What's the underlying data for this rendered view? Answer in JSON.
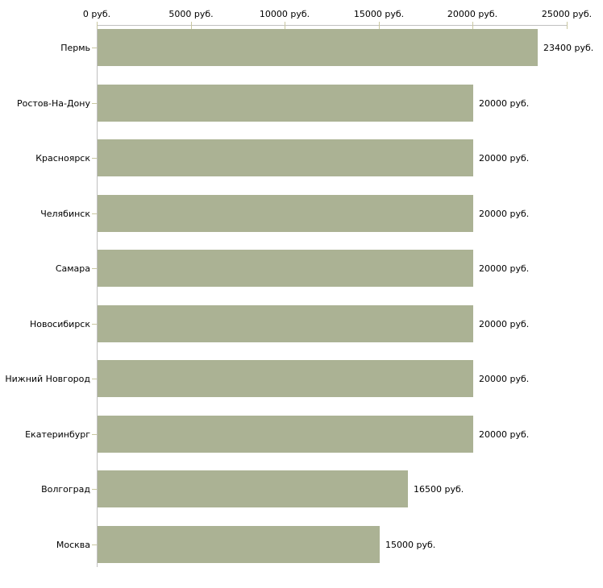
{
  "chart_data": {
    "type": "bar",
    "orientation": "horizontal",
    "title": "",
    "categories": [
      "Пермь",
      "Ростов-На-Дону",
      "Красноярск",
      "Челябинск",
      "Самара",
      "Новосибирск",
      "Нижний Новгород",
      "Екатеринбург",
      "Волгоград",
      "Москва"
    ],
    "values": [
      23400,
      20000,
      20000,
      20000,
      20000,
      20000,
      20000,
      20000,
      16500,
      15000
    ],
    "value_labels": [
      "23400 руб.",
      "20000 руб.",
      "20000 руб.",
      "20000 руб.",
      "20000 руб.",
      "20000 руб.",
      "20000 руб.",
      "20000 руб.",
      "16500 руб.",
      "15000 руб."
    ],
    "x_axis": {
      "position": "top",
      "min": 0,
      "max": 25000,
      "tick_step": 5000,
      "tick_values": [
        0,
        5000,
        10000,
        15000,
        20000,
        25000
      ],
      "tick_labels": [
        "0 руб.",
        "5000 руб.",
        "10000 руб.",
        "15000 руб.",
        "20000 руб.",
        "25000 руб."
      ]
    },
    "legend": "none",
    "grid": false,
    "colors": {
      "bar": "#abb294",
      "axis_line": "#c0c0c0",
      "tick": "#c9c7a0",
      "text": "#000000",
      "background": "#ffffff"
    }
  }
}
